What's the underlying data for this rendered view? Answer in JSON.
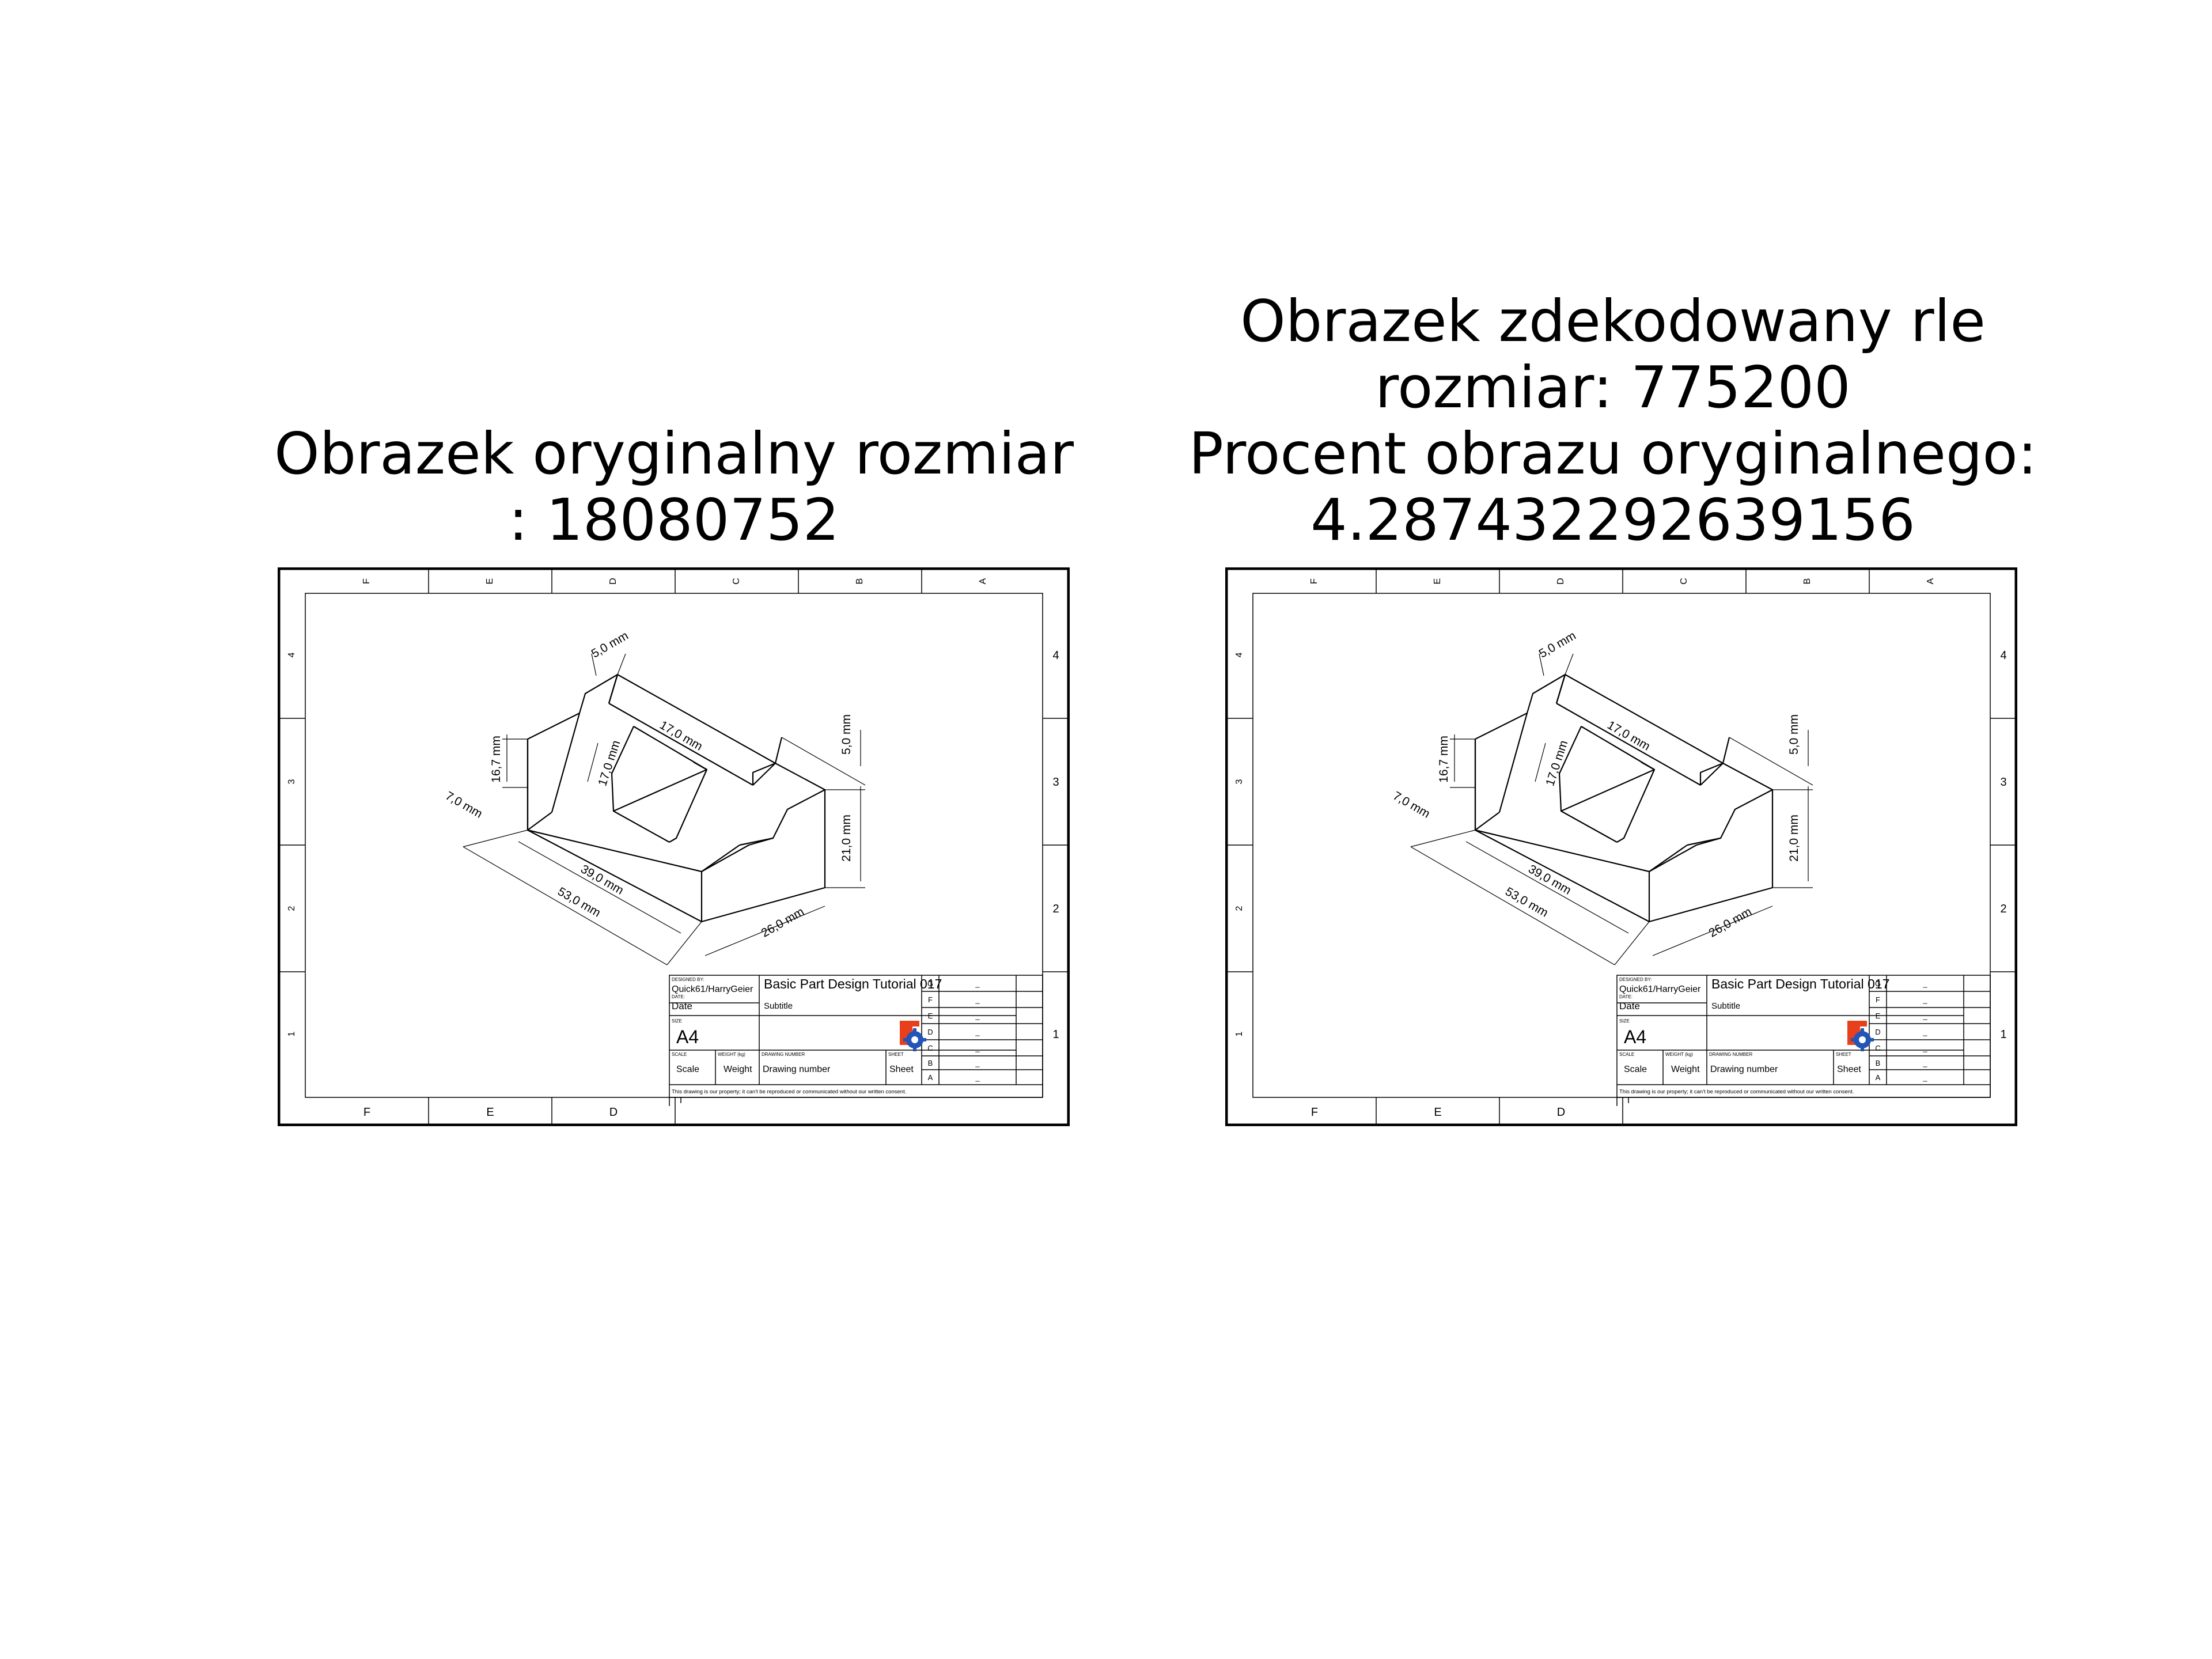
{
  "left_panel": {
    "title_lines": [
      "Obrazek oryginalny rozmiar",
      ": 18080752"
    ]
  },
  "right_panel": {
    "title_lines": [
      "Obrazek zdekodowany rle",
      "rozmiar: 775200",
      "Procent obrazu oryginalnego:",
      "4.287432292639156"
    ]
  },
  "drawing": {
    "col_labels": [
      "F",
      "E",
      "D",
      "C",
      "B",
      "A"
    ],
    "row_labels": [
      "4",
      "3",
      "2",
      "1"
    ],
    "dimensions": {
      "d5_top": "5,0 mm",
      "d17_width": "17,0 mm",
      "d17_height": "17,0 mm",
      "d16_7": "16,7 mm",
      "d7": "7,0 mm",
      "d39": "39,0 mm",
      "d53": "53,0 mm",
      "d26": "26,0 mm",
      "d21": "21,0 mm",
      "d5_right": "5,0 mm"
    },
    "title_block": {
      "designed_by_label": "DESIGNED BY:",
      "designed_by": "Quick61/HarryGeier",
      "date_label": "DATE:",
      "date": "Date",
      "size_label": "SIZE",
      "size": "A4",
      "title": "Basic Part Design Tutorial 017",
      "subtitle": "Subtitle",
      "scale_label": "SCALE",
      "scale": "Scale",
      "weight_label": "WEIGHT (kg)",
      "weight": "Weight",
      "drawing_number_label": "DRAWING NUMBER",
      "drawing_number": "Drawing number",
      "sheet_label": "SHEET",
      "sheet": "Sheet",
      "revision_letters": [
        "G",
        "F",
        "E",
        "D",
        "C",
        "B",
        "A"
      ],
      "revision_marks": [
        "_",
        "_",
        "_",
        "_",
        "_",
        "_",
        "_"
      ],
      "footer": "This drawing is our property; it can't be reproduced or communicated without our written consent."
    }
  }
}
